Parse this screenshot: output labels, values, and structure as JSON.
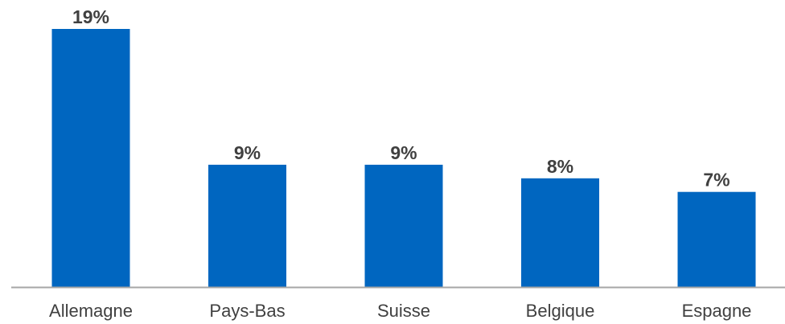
{
  "chart_data": {
    "type": "bar",
    "categories": [
      "Allemagne",
      "Pays-Bas",
      "Suisse",
      "Belgique",
      "Espagne"
    ],
    "values": [
      19,
      9,
      9,
      8,
      7
    ],
    "value_labels": [
      "19%",
      "9%",
      "9%",
      "8%",
      "7%"
    ],
    "ylim": [
      0,
      19
    ],
    "grid": false,
    "legend": "none",
    "title": "",
    "xlabel": "",
    "ylabel": ""
  },
  "colors": {
    "bar": "#0066C0",
    "axis": "#A6A6A6",
    "text": "#404040"
  }
}
